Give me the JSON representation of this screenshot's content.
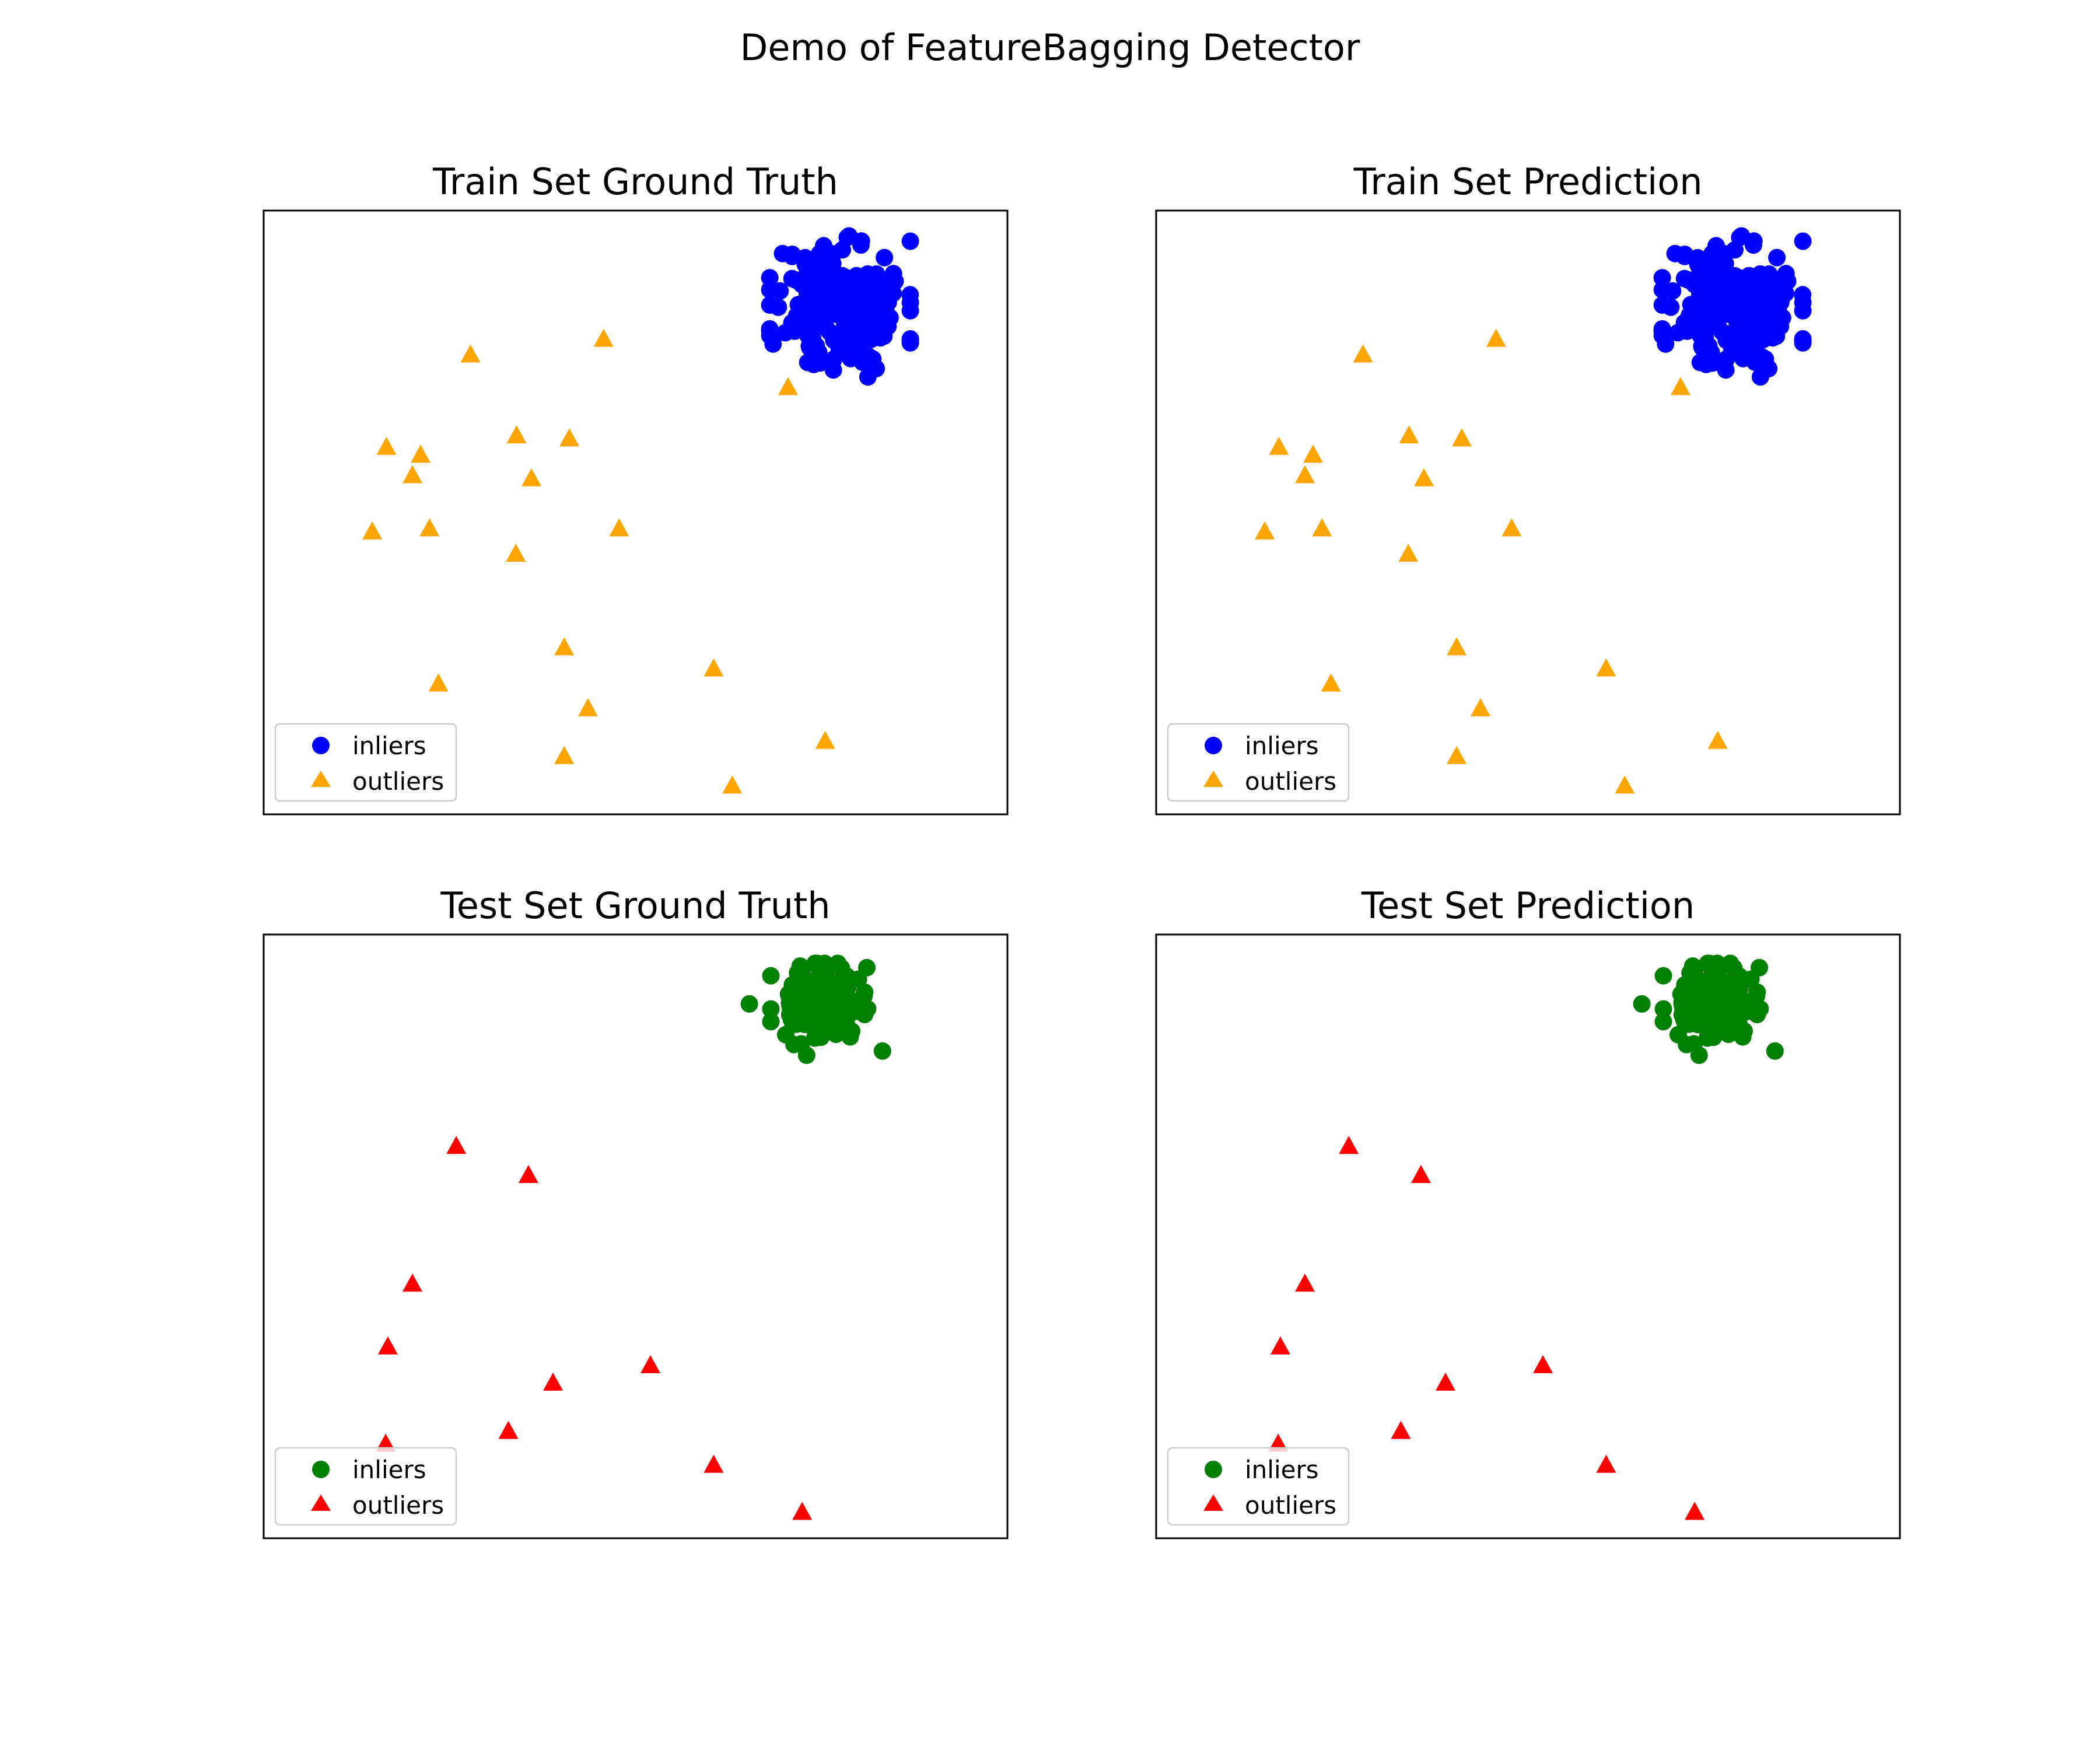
{
  "figure": {
    "suptitle": "Demo of FeatureBagging Detector"
  },
  "colors": {
    "train_inlier": "#0000ff",
    "train_outlier": "#ffa500",
    "test_inlier": "#008000",
    "test_outlier": "#ff0000",
    "axes_frame": "#000000",
    "legend_frame": "#cccccc"
  },
  "chart_data": [
    {
      "type": "scatter",
      "title": "Train Set Ground Truth",
      "xlabel": "",
      "ylabel": "",
      "xlim": [
        0,
        1
      ],
      "ylim": [
        0,
        1
      ],
      "ticks": "none",
      "grid": false,
      "legend": {
        "placement": "lower-left",
        "entries": [
          "inliers",
          "outliers"
        ]
      },
      "inlier_color": "#0000ff",
      "outlier_color": "#ffa500",
      "series": [
        {
          "name": "inliers",
          "marker": "circle",
          "cluster": {
            "cx": 0.775,
            "cy": 0.84,
            "sx": 0.045,
            "sy": 0.055,
            "n": 180,
            "seed": 11
          },
          "extra_points": [
            [
              0.787,
              0.958
            ],
            [
              0.778,
              0.935
            ],
            [
              0.764,
              0.915
            ],
            [
              0.849,
              0.883
            ],
            [
              0.838,
              0.845
            ],
            [
              0.834,
              0.792
            ],
            [
              0.766,
              0.736
            ],
            [
              0.743,
              0.776
            ],
            [
              0.692,
              0.84
            ],
            [
              0.805,
              0.749
            ]
          ]
        },
        {
          "name": "outliers",
          "marker": "triangle",
          "points": [
            [
              0.278,
              0.76
            ],
            [
              0.457,
              0.786
            ],
            [
              0.705,
              0.706
            ],
            [
              0.34,
              0.626
            ],
            [
              0.411,
              0.621
            ],
            [
              0.165,
              0.607
            ],
            [
              0.211,
              0.594
            ],
            [
              0.2,
              0.56
            ],
            [
              0.36,
              0.555
            ],
            [
              0.146,
              0.467
            ],
            [
              0.223,
              0.472
            ],
            [
              0.478,
              0.472
            ],
            [
              0.339,
              0.43
            ],
            [
              0.404,
              0.275
            ],
            [
              0.605,
              0.24
            ],
            [
              0.235,
              0.215
            ],
            [
              0.436,
              0.174
            ],
            [
              0.755,
              0.12
            ],
            [
              0.404,
              0.095
            ],
            [
              0.63,
              0.046
            ]
          ]
        }
      ]
    },
    {
      "type": "scatter",
      "title": "Train Set Prediction",
      "xlabel": "",
      "ylabel": "",
      "xlim": [
        0,
        1
      ],
      "ylim": [
        0,
        1
      ],
      "ticks": "none",
      "grid": false,
      "legend": {
        "placement": "lower-left",
        "entries": [
          "inliers",
          "outliers"
        ]
      },
      "inlier_color": "#0000ff",
      "outlier_color": "#ffa500",
      "series": [
        {
          "name": "inliers",
          "marker": "circle",
          "cluster": {
            "cx": 0.775,
            "cy": 0.84,
            "sx": 0.045,
            "sy": 0.055,
            "n": 180,
            "seed": 11
          },
          "extra_points": [
            [
              0.787,
              0.958
            ],
            [
              0.778,
              0.935
            ],
            [
              0.764,
              0.915
            ],
            [
              0.849,
              0.883
            ],
            [
              0.838,
              0.845
            ],
            [
              0.834,
              0.792
            ],
            [
              0.766,
              0.736
            ],
            [
              0.743,
              0.776
            ],
            [
              0.692,
              0.84
            ],
            [
              0.805,
              0.749
            ]
          ]
        },
        {
          "name": "outliers",
          "marker": "triangle",
          "points": [
            [
              0.278,
              0.76
            ],
            [
              0.457,
              0.786
            ],
            [
              0.705,
              0.706
            ],
            [
              0.34,
              0.626
            ],
            [
              0.411,
              0.621
            ],
            [
              0.165,
              0.607
            ],
            [
              0.211,
              0.594
            ],
            [
              0.2,
              0.56
            ],
            [
              0.36,
              0.555
            ],
            [
              0.146,
              0.467
            ],
            [
              0.223,
              0.472
            ],
            [
              0.478,
              0.472
            ],
            [
              0.339,
              0.43
            ],
            [
              0.404,
              0.275
            ],
            [
              0.605,
              0.24
            ],
            [
              0.235,
              0.215
            ],
            [
              0.436,
              0.174
            ],
            [
              0.755,
              0.12
            ],
            [
              0.404,
              0.095
            ],
            [
              0.63,
              0.046
            ]
          ]
        }
      ]
    },
    {
      "type": "scatter",
      "title": "Test Set Ground Truth",
      "xlabel": "",
      "ylabel": "",
      "xlim": [
        0,
        1
      ],
      "ylim": [
        0,
        1
      ],
      "ticks": "none",
      "grid": false,
      "legend": {
        "placement": "lower-left",
        "entries": [
          "inliers",
          "outliers"
        ]
      },
      "inlier_color": "#008000",
      "outlier_color": "#ff0000",
      "series": [
        {
          "name": "inliers",
          "marker": "circle",
          "cluster": {
            "cx": 0.745,
            "cy": 0.885,
            "sx": 0.03,
            "sy": 0.032,
            "n": 90,
            "seed": 23
          },
          "extra_points": [
            [
              0.832,
              0.807
            ],
            [
              0.73,
              0.8
            ],
            [
              0.811,
              0.945
            ],
            [
              0.653,
              0.885
            ],
            [
              0.812,
              0.877
            ],
            [
              0.702,
              0.834
            ]
          ]
        },
        {
          "name": "outliers",
          "marker": "triangle",
          "points": [
            [
              0.259,
              0.648
            ],
            [
              0.356,
              0.6
            ],
            [
              0.2,
              0.42
            ],
            [
              0.167,
              0.316
            ],
            [
              0.52,
              0.285
            ],
            [
              0.389,
              0.256
            ],
            [
              0.329,
              0.176
            ],
            [
              0.164,
              0.155
            ],
            [
              0.605,
              0.12
            ],
            [
              0.724,
              0.042
            ]
          ]
        }
      ]
    },
    {
      "type": "scatter",
      "title": "Test Set Prediction",
      "xlabel": "",
      "ylabel": "",
      "xlim": [
        0,
        1
      ],
      "ylim": [
        0,
        1
      ],
      "ticks": "none",
      "grid": false,
      "legend": {
        "placement": "lower-left",
        "entries": [
          "inliers",
          "outliers"
        ]
      },
      "inlier_color": "#008000",
      "outlier_color": "#ff0000",
      "series": [
        {
          "name": "inliers",
          "marker": "circle",
          "cluster": {
            "cx": 0.745,
            "cy": 0.885,
            "sx": 0.03,
            "sy": 0.032,
            "n": 90,
            "seed": 23
          },
          "extra_points": [
            [
              0.832,
              0.807
            ],
            [
              0.73,
              0.8
            ],
            [
              0.811,
              0.945
            ],
            [
              0.653,
              0.885
            ],
            [
              0.812,
              0.877
            ],
            [
              0.702,
              0.834
            ]
          ]
        },
        {
          "name": "outliers",
          "marker": "triangle",
          "points": [
            [
              0.259,
              0.648
            ],
            [
              0.356,
              0.6
            ],
            [
              0.2,
              0.42
            ],
            [
              0.167,
              0.316
            ],
            [
              0.52,
              0.285
            ],
            [
              0.389,
              0.256
            ],
            [
              0.329,
              0.176
            ],
            [
              0.164,
              0.155
            ],
            [
              0.605,
              0.12
            ],
            [
              0.724,
              0.042
            ]
          ]
        }
      ]
    }
  ]
}
